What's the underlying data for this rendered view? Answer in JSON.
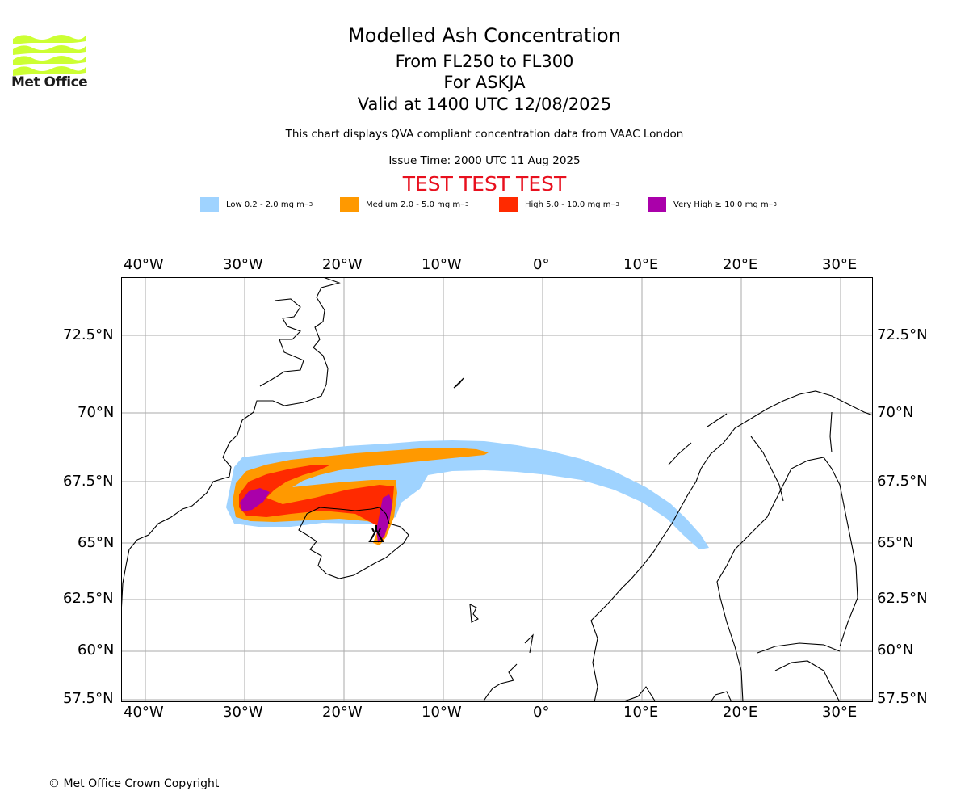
{
  "header": {
    "title": "Modelled Ash Concentration",
    "level_range": "From FL250 to FL300",
    "volcano_line": "For ASKJA",
    "valid_time": "Valid at 1400 UTC 12/08/2025",
    "note": "This chart displays QVA compliant concentration data from VAAC London",
    "issue_time": "Issue Time: 2000 UTC 11 Aug 2025",
    "test_banner": "TEST TEST TEST"
  },
  "logo": {
    "text": "Met Office",
    "color": "#ccff33"
  },
  "legend": [
    {
      "label": "Low 0.2 - 2.0 mg m",
      "exp": "−3",
      "color": "#9fd3ff"
    },
    {
      "label": "Medium 2.0 - 5.0 mg m",
      "exp": "−3",
      "color": "#ff9900"
    },
    {
      "label": "High 5.0 - 10.0 mg m",
      "exp": "−3",
      "color": "#ff2a00"
    },
    {
      "label": "Very High  ≥  10.0 mg m",
      "exp": "−3",
      "color": "#aa00aa"
    }
  ],
  "map": {
    "lon_labels": [
      "40°W",
      "30°W",
      "20°W",
      "10°W",
      "0°",
      "10°E",
      "20°E",
      "30°E"
    ],
    "lat_labels": [
      "72.5°N",
      "70°N",
      "67.5°N",
      "65°N",
      "62.5°N",
      "60°N",
      "57.5°N"
    ],
    "volcano_symbol": "volcano-marker",
    "gridline_color": "#aaaaaa"
  },
  "footer": {
    "copyright": "© Met Office Crown Copyright"
  }
}
